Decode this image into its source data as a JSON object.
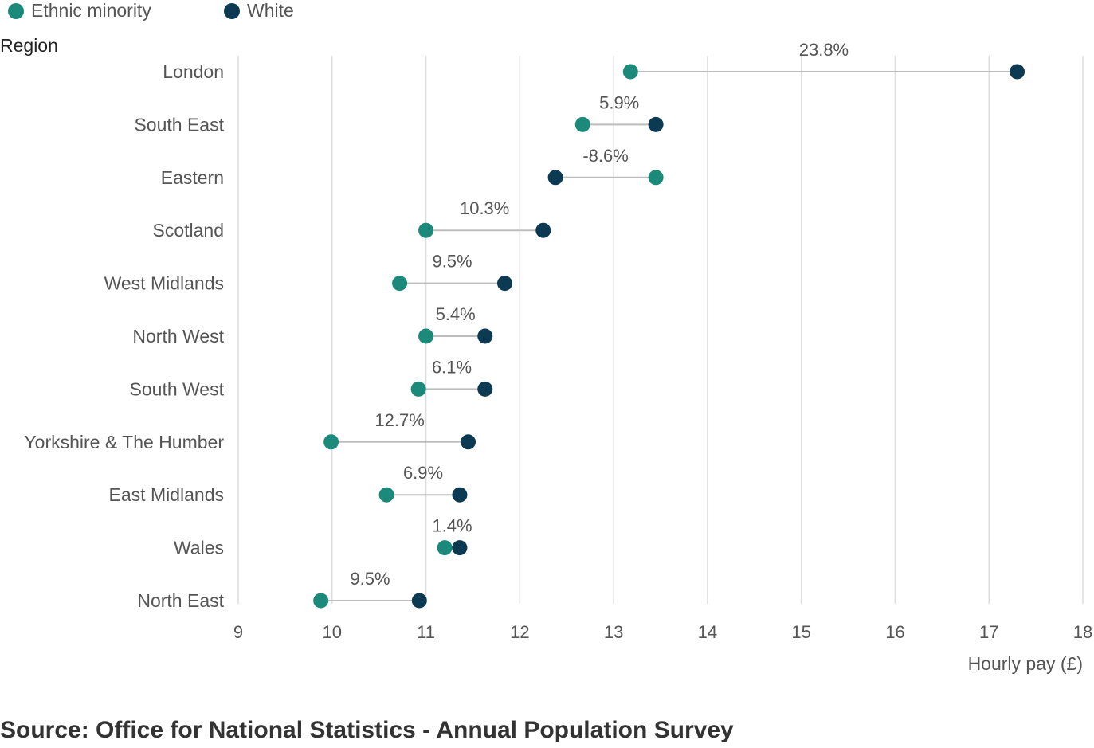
{
  "legend": {
    "ethnic_minority": "Ethnic minority",
    "white": "White"
  },
  "colors": {
    "ethnic_minority": "#1b8a7a",
    "white": "#0b3a52",
    "connector": "#bdbdbd",
    "grid": "#dddddd",
    "text": "#555555"
  },
  "source": "Source: Office for National Statistics - Annual Population Survey",
  "chart_data": {
    "type": "dumbbell",
    "y_axis_title": "Region",
    "x_axis_title": "Hourly pay (£)",
    "xlim": [
      9,
      18
    ],
    "x_ticks": [
      9,
      10,
      11,
      12,
      13,
      14,
      15,
      16,
      17,
      18
    ],
    "grid": "vertical",
    "legend_position": "top-left",
    "categories": [
      "London",
      "South East",
      "Eastern",
      "Scotland",
      "West Midlands",
      "North West",
      "South West",
      "Yorkshire & The Humber",
      "East Midlands",
      "Wales",
      "North East"
    ],
    "series": [
      {
        "name": "Ethnic minority",
        "values": [
          13.18,
          12.67,
          13.45,
          11.0,
          10.72,
          11.0,
          10.92,
          9.99,
          10.58,
          11.2,
          9.88
        ]
      },
      {
        "name": "White",
        "values": [
          17.3,
          13.45,
          12.38,
          12.25,
          11.84,
          11.63,
          11.63,
          11.45,
          11.36,
          11.36,
          10.93
        ]
      }
    ],
    "gap_labels": [
      "23.8%",
      "5.9%",
      "-8.6%",
      "10.3%",
      "9.5%",
      "5.4%",
      "6.1%",
      "12.7%",
      "6.9%",
      "1.4%",
      "9.5%"
    ]
  }
}
